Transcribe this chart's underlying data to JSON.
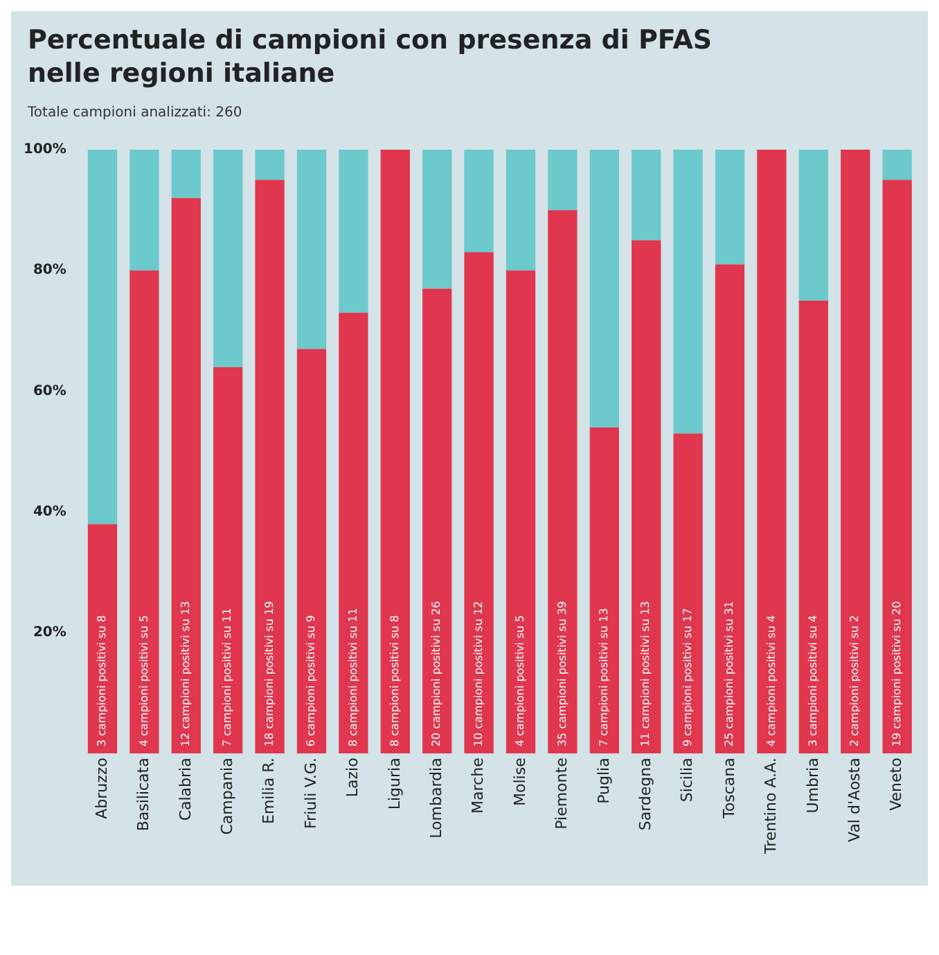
{
  "chart_data": {
    "type": "bar",
    "title": "Percentuale di campioni con presenza di PFAS\nnelle regioni italiane",
    "subtitle": "Totale campioni analizzati: 260",
    "stacked": true,
    "categories": [
      "Abruzzo",
      "Basilicata",
      "Calabria",
      "Campania",
      "Emilia R.",
      "Friuli V.G.",
      "Lazio",
      "Liguria",
      "Lombardia",
      "Marche",
      "Molise",
      "Piemonte",
      "Puglia",
      "Sardegna",
      "Sicilia",
      "Toscana",
      "Trentino A.A.",
      "Umbria",
      "Val d'Aosta",
      "Veneto"
    ],
    "series": [
      {
        "color": "#e0364e",
        "values": [
          38,
          80,
          92,
          64,
          95,
          67,
          73,
          100,
          77,
          83,
          80,
          90,
          54,
          85,
          53,
          81,
          100,
          75,
          100,
          95
        ]
      },
      {
        "color": "#6cc9cc",
        "values": [
          62,
          20,
          8,
          36,
          5,
          33,
          27,
          0,
          23,
          17,
          20,
          10,
          46,
          15,
          47,
          19,
          0,
          25,
          0,
          5
        ]
      }
    ],
    "annotations": [
      {
        "text": "3 campioni positivi su 8",
        "x": "Abruzzo",
        "y": 0
      },
      {
        "text": "4 campioni positivi su 5",
        "x": "Basilicata",
        "y": 0
      },
      {
        "text": "12 campioni positivi su 13",
        "x": "Calabria",
        "y": 0
      },
      {
        "text": "7 campioni positivi su 11",
        "x": "Campania",
        "y": 0
      },
      {
        "text": "18 campioni positivi su 19",
        "x": "Emilia R.",
        "y": 0
      },
      {
        "text": "6 campioni positivi su 9",
        "x": "Friuli V.G.",
        "y": 0
      },
      {
        "text": "8 campioni positivi su 11",
        "x": "Lazio",
        "y": 0
      },
      {
        "text": "8 campioni positivi su 8",
        "x": "Liguria",
        "y": 0
      },
      {
        "text": "20 campioni positivi su 26",
        "x": "Lombardia",
        "y": 0
      },
      {
        "text": "10 campioni positivi su 12",
        "x": "Marche",
        "y": 0
      },
      {
        "text": "4 campioni positivi su 5",
        "x": "Molise",
        "y": 0
      },
      {
        "text": "35 campioni positivi su 39",
        "x": "Piemonte",
        "y": 0
      },
      {
        "text": "7 campioni positivi su 13",
        "x": "Puglia",
        "y": 0
      },
      {
        "text": "11 campioni positivi su 13",
        "x": "Sardegna",
        "y": 0
      },
      {
        "text": "9 campioni positivi su 17",
        "x": "Sicilia",
        "y": 0
      },
      {
        "text": "25 campioni positivi su 31",
        "x": "Toscana",
        "y": 0
      },
      {
        "text": "4 campioni positivi su 4",
        "x": "Trentino A.A.",
        "y": 0
      },
      {
        "text": "3 campioni positivi su 4",
        "x": "Umbria",
        "y": 0
      },
      {
        "text": "2 campioni positivi su 2",
        "x": "Val d'Aosta",
        "y": 0
      },
      {
        "text": "19 campioni positivi su 20",
        "x": "Veneto",
        "y": 0
      }
    ],
    "ylim": [
      0,
      100
    ],
    "yticks": [
      {
        "value": 20,
        "label": "20%"
      },
      {
        "value": 40,
        "label": "40%"
      },
      {
        "value": 60,
        "label": "60%"
      },
      {
        "value": 80,
        "label": "80%"
      },
      {
        "value": 100,
        "label": "100%"
      }
    ],
    "grid": false,
    "legend": false
  }
}
